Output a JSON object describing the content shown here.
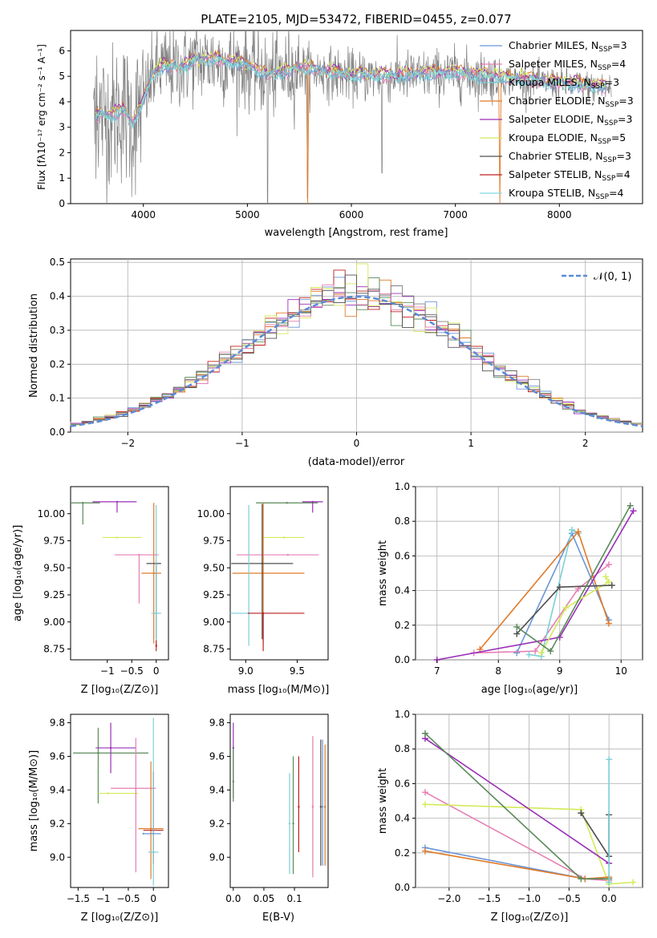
{
  "colors": {
    "chabrier_miles": "#6a95d6",
    "salpeter_miles": "#e67fb4",
    "kroupa_miles": "#7ccfd6",
    "chabrier_elodie": "#e07a28",
    "salpeter_elodie": "#9a2fb8",
    "kroupa_elodie": "#d4ea5a",
    "chabrier_stelib": "#505050",
    "salpeter_stelib": "#c02020",
    "kroupa_stelib": "#80d8e0",
    "green": "#5a8a5a",
    "data_gray": "#808080",
    "normal": "#5b8bd6"
  },
  "chart_data": [
    {
      "type": "line",
      "id": "spectrum",
      "title": "PLATE=2105, MJD=53472, FIBERID=0455, z=0.077",
      "xlabel": "wavelength [Angstrom, rest frame]",
      "ylabel": "Flux [fλ10⁻¹⁷ erg cm⁻² s⁻¹ A⁻¹]",
      "xlim": [
        3300,
        8800
      ],
      "ylim": [
        0,
        6.8
      ],
      "xticks": [
        4000,
        5000,
        6000,
        7000,
        8000
      ],
      "yticks": [
        0,
        1,
        2,
        3,
        4,
        5,
        6
      ],
      "legend_position": "top-right",
      "legend": [
        {
          "label": "Chabrier MILES, N",
          "sub": "SSP",
          "count": "=3",
          "color_key": "chabrier_miles"
        },
        {
          "label": "Salpeter MILES, N",
          "sub": "SSP",
          "count": "=4",
          "color_key": "salpeter_miles"
        },
        {
          "label": "Kroupa MILES, N",
          "sub": "SSP",
          "count": "=3",
          "color_key": "kroupa_miles"
        },
        {
          "label": "Chabrier ELODIE, N",
          "sub": "SSP",
          "count": "=3",
          "color_key": "chabrier_elodie"
        },
        {
          "label": "Salpeter ELODIE, N",
          "sub": "SSP",
          "count": "=3",
          "color_key": "salpeter_elodie"
        },
        {
          "label": "Kroupa ELODIE, N",
          "sub": "SSP",
          "count": "=5",
          "color_key": "kroupa_elodie"
        },
        {
          "label": "Chabrier STELIB, N",
          "sub": "SSP",
          "count": "=3",
          "color_key": "chabrier_stelib"
        },
        {
          "label": "Salpeter STELIB, N",
          "sub": "SSP",
          "count": "=4",
          "color_key": "salpeter_stelib"
        },
        {
          "label": "Kroupa STELIB, N",
          "sub": "SSP",
          "count": "=4",
          "color_key": "kroupa_stelib"
        }
      ],
      "model_continuum": {
        "x": [
          3500,
          3600,
          3700,
          3800,
          3900,
          4000,
          4100,
          4200,
          4300,
          4400,
          4500,
          4700,
          5000,
          5200,
          5500,
          6000,
          6500,
          7000,
          7500,
          8000,
          8500
        ],
        "y": [
          3.3,
          3.5,
          3.4,
          3.7,
          3.1,
          4.0,
          5.1,
          5.4,
          5.3,
          5.4,
          5.6,
          5.6,
          5.4,
          5.0,
          5.3,
          5.0,
          5.0,
          5.1,
          4.9,
          4.7,
          4.5
        ]
      }
    },
    {
      "type": "step",
      "id": "residuals",
      "xlabel": "(data-model)/error",
      "ylabel": "Normed distribution",
      "xlim": [
        -2.5,
        2.5
      ],
      "ylim": [
        0,
        0.51
      ],
      "xticks": [
        -2,
        -1,
        0,
        1,
        2
      ],
      "yticks": [
        0.0,
        0.1,
        0.2,
        0.3,
        0.4,
        0.5
      ],
      "grid": true,
      "legend_position": "top-right",
      "legend_label": "𝒩(0, 1)",
      "bin_width": 0.1
    },
    {
      "type": "scatter",
      "id": "age_vs_Z",
      "xlabel": "Z [log₁₀(Z/Z⊙)]",
      "ylabel": "age  [log₁₀(age/yr)]",
      "xlim": [
        -1.75,
        0.25
      ],
      "ylim": [
        8.65,
        10.25
      ],
      "xticks": [
        -1,
        -0.5,
        0
      ],
      "yticks": [
        8.75,
        9.0,
        9.25,
        9.5,
        9.75,
        10.0
      ],
      "points": [
        {
          "x": -1.5,
          "xerr": [
            0.5,
            0.35
          ],
          "y": 10.1,
          "yerr": [
            0.2,
            0.0
          ],
          "color_key": "green"
        },
        {
          "x": -0.8,
          "xerr": [
            0.5,
            0.4
          ],
          "y": 10.11,
          "yerr": [
            0.1,
            0.0
          ],
          "color_key": "salpeter_elodie"
        },
        {
          "x": -0.8,
          "xerr": [
            0.3,
            0.5
          ],
          "y": 9.78,
          "yerr": [
            0.0,
            0.0
          ],
          "color_key": "kroupa_elodie"
        },
        {
          "x": -0.35,
          "xerr": [
            0.5,
            0.4
          ],
          "y": 9.62,
          "yerr": [
            0.45,
            0.0
          ],
          "color_key": "salpeter_miles"
        },
        {
          "x": -0.05,
          "xerr": [
            0.25,
            0.15
          ],
          "y": 9.45,
          "yerr": [
            0.65,
            0.65
          ],
          "color_key": "chabrier_elodie"
        },
        {
          "x": 0.0,
          "xerr": [
            0.2,
            0.1
          ],
          "y": 9.54,
          "yerr": [
            0.7,
            0.0
          ],
          "color_key": "chabrier_stelib"
        },
        {
          "x": 0.0,
          "xerr": [
            0.1,
            0.1
          ],
          "y": 9.08,
          "yerr": [
            0.3,
            1.0
          ],
          "color_key": "kroupa_miles"
        },
        {
          "x": 0.0,
          "xerr": [
            0.0,
            0.0
          ],
          "y": 8.78,
          "yerr": [
            0.05,
            0.05
          ],
          "color_key": "salpeter_stelib"
        }
      ]
    },
    {
      "type": "scatter",
      "id": "age_vs_mass",
      "xlabel": "mass [log₁₀(M/M⊙)]",
      "ylabel": "",
      "xlim": [
        8.85,
        9.8
      ],
      "ylim": [
        8.65,
        10.25
      ],
      "xticks": [
        9.0,
        9.5
      ],
      "yticks": [
        8.75,
        9.0,
        9.25,
        9.5,
        9.75,
        10.0
      ],
      "points": [
        {
          "x": 9.4,
          "xerr": [
            0.3,
            0.3
          ],
          "y": 10.1,
          "yerr": [
            0.0,
            0.0
          ],
          "color_key": "green"
        },
        {
          "x": 9.65,
          "xerr": [
            0.1,
            0.1
          ],
          "y": 10.11,
          "yerr": [
            0.1,
            0.0
          ],
          "color_key": "salpeter_elodie"
        },
        {
          "x": 9.37,
          "xerr": [
            0.2,
            0.2
          ],
          "y": 9.78,
          "yerr": [
            0.0,
            0.0
          ],
          "color_key": "kroupa_elodie"
        },
        {
          "x": 9.41,
          "xerr": [
            0.5,
            0.3
          ],
          "y": 9.62,
          "yerr": [
            0.0,
            0.0
          ],
          "color_key": "salpeter_miles"
        },
        {
          "x": 9.17,
          "xerr": [
            0.3,
            0.4
          ],
          "y": 9.45,
          "yerr": [
            0.65,
            0.65
          ],
          "color_key": "chabrier_elodie"
        },
        {
          "x": 9.16,
          "xerr": [
            0.3,
            0.3
          ],
          "y": 9.54,
          "yerr": [
            0.7,
            0.55
          ],
          "color_key": "chabrier_stelib"
        },
        {
          "x": 9.03,
          "xerr": [
            0.2,
            0.3
          ],
          "y": 9.08,
          "yerr": [
            0.3,
            1.0
          ],
          "color_key": "kroupa_miles"
        },
        {
          "x": 9.17,
          "xerr": [
            0.15,
            0.4
          ],
          "y": 9.08,
          "yerr": [
            0.35,
            0.0
          ],
          "color_key": "salpeter_stelib"
        }
      ]
    },
    {
      "type": "line",
      "id": "massweight_vs_age",
      "xlabel": "age  [log₁₀(age/yr)]",
      "ylabel": "mass weight",
      "xlim": [
        6.65,
        10.35
      ],
      "ylim": [
        0,
        1.0
      ],
      "xticks": [
        7,
        8,
        9,
        10
      ],
      "yticks": [
        0.0,
        0.2,
        0.4,
        0.6,
        0.8,
        1.0
      ],
      "grid": true,
      "series": [
        {
          "color_key": "chabrier_miles",
          "x": [
            8.3,
            9.2,
            9.8
          ],
          "y": [
            0.04,
            0.73,
            0.23
          ]
        },
        {
          "color_key": "salpeter_miles",
          "x": [
            7.6,
            8.6,
            9.3,
            9.8
          ],
          "y": [
            0.04,
            0.05,
            0.41,
            0.55
          ]
        },
        {
          "color_key": "kroupa_miles",
          "x": [
            8.5,
            8.7,
            9.2,
            9.3
          ],
          "y": [
            0.03,
            0.02,
            0.75,
            0.73
          ]
        },
        {
          "color_key": "chabrier_elodie",
          "x": [
            7.7,
            9.3,
            9.8
          ],
          "y": [
            0.06,
            0.74,
            0.21
          ]
        },
        {
          "color_key": "salpeter_elodie",
          "x": [
            7.0,
            9.0,
            10.2
          ],
          "y": [
            0.0,
            0.13,
            0.86
          ]
        },
        {
          "color_key": "kroupa_elodie",
          "x": [
            8.7,
            9.1,
            9.8,
            9.75
          ],
          "y": [
            0.04,
            0.3,
            0.45,
            0.48
          ]
        },
        {
          "color_key": "chabrier_stelib",
          "x": [
            8.3,
            9.0,
            9.85
          ],
          "y": [
            0.15,
            0.42,
            0.43
          ]
        },
        {
          "color_key": "green",
          "x": [
            8.3,
            8.85,
            10.15
          ],
          "y": [
            0.19,
            0.05,
            0.89
          ]
        }
      ]
    },
    {
      "type": "scatter",
      "id": "mass_vs_Z",
      "xlabel": "Z [log₁₀(Z/Z⊙)]",
      "ylabel": "mass [log₁₀(M/M⊙)]",
      "xlim": [
        -1.65,
        0.3
      ],
      "ylim": [
        8.82,
        9.85
      ],
      "xticks": [
        -1.5,
        -1.0,
        -0.5,
        0.0
      ],
      "yticks": [
        9.0,
        9.2,
        9.4,
        9.6,
        9.8
      ],
      "points": [
        {
          "x": -1.1,
          "xerr": [
            0.5,
            1.0
          ],
          "y": 9.62,
          "yerr": [
            0.3,
            0.15
          ],
          "color_key": "green"
        },
        {
          "x": -0.85,
          "xerr": [
            0.3,
            0.5
          ],
          "y": 9.65,
          "yerr": [
            0.15,
            0.15
          ],
          "color_key": "salpeter_elodie"
        },
        {
          "x": -0.9,
          "xerr": [
            0.2,
            0.6
          ],
          "y": 9.38,
          "yerr": [
            0.0,
            0.0
          ],
          "color_key": "kroupa_elodie"
        },
        {
          "x": -0.35,
          "xerr": [
            0.5,
            0.4
          ],
          "y": 9.41,
          "yerr": [
            0.5,
            0.3
          ],
          "color_key": "salpeter_miles"
        },
        {
          "x": -0.05,
          "xerr": [
            0.25,
            0.25
          ],
          "y": 9.17,
          "yerr": [
            0.3,
            0.4
          ],
          "color_key": "chabrier_elodie"
        },
        {
          "x": 0.0,
          "xerr": [
            0.2,
            0.2
          ],
          "y": 9.16,
          "yerr": [
            0.2,
            0.35
          ],
          "color_key": "salpeter_stelib"
        },
        {
          "x": 0.0,
          "xerr": [
            0.1,
            0.1
          ],
          "y": 9.03,
          "yerr": [
            0.2,
            0.8
          ],
          "color_key": "kroupa_miles"
        },
        {
          "x": -0.2,
          "xerr": [
            0.0,
            0.35
          ],
          "y": 9.14,
          "yerr": [
            0.0,
            0.0
          ],
          "color_key": "chabrier_miles"
        }
      ]
    },
    {
      "type": "scatter",
      "id": "mass_vs_EBV",
      "xlabel": "E(B-V)",
      "ylabel": "",
      "xlim": [
        -0.005,
        0.155
      ],
      "ylim": [
        8.82,
        9.85
      ],
      "xticks": [
        0.0,
        0.05,
        0.1
      ],
      "yticks": [
        9.0,
        9.2,
        9.4,
        9.6,
        9.8
      ],
      "points": [
        {
          "x": 0.0,
          "y": 9.65,
          "yerr": [
            0.3,
            0.15
          ],
          "color_key": "salpeter_elodie"
        },
        {
          "x": 0.0,
          "y": 9.45,
          "yerr": [
            0.12,
            0.2
          ],
          "color_key": "green"
        },
        {
          "x": 0.092,
          "y": 9.2,
          "yerr": [
            0.3,
            0.3
          ],
          "color_key": "kroupa_miles"
        },
        {
          "x": 0.098,
          "y": 9.2,
          "yerr": [
            0.3,
            0.4
          ],
          "color_key": "green"
        },
        {
          "x": 0.107,
          "y": 9.3,
          "yerr": [
            0.27,
            0.3
          ],
          "color_key": "salpeter_stelib"
        },
        {
          "x": 0.13,
          "y": 9.3,
          "yerr": [
            0.4,
            0.42
          ],
          "color_key": "kroupa_elodie"
        },
        {
          "x": 0.13,
          "y": 9.3,
          "yerr": [
            0.42,
            0.42
          ],
          "color_key": "salpeter_miles"
        },
        {
          "x": 0.143,
          "y": 9.3,
          "yerr": [
            0.35,
            0.4
          ],
          "color_key": "chabrier_stelib"
        },
        {
          "x": 0.146,
          "y": 9.3,
          "yerr": [
            0.35,
            0.4
          ],
          "color_key": "chabrier_miles"
        },
        {
          "x": 0.15,
          "y": 9.3,
          "yerr": [
            0.35,
            0.37
          ],
          "color_key": "chabrier_elodie"
        }
      ]
    },
    {
      "type": "line",
      "id": "massweight_vs_Z",
      "xlabel": "Z [log₁₀(Z/Z⊙)]",
      "ylabel": "mass weight",
      "xlim": [
        -2.42,
        0.42
      ],
      "ylim": [
        0,
        1.0
      ],
      "xticks": [
        -2.0,
        -1.5,
        -1.0,
        -0.5,
        0.0
      ],
      "grid": true,
      "yticks": [
        0.0,
        0.2,
        0.4,
        0.6,
        0.8,
        1.0
      ],
      "series": [
        {
          "color_key": "chabrier_miles",
          "x": [
            -2.3,
            -0.3,
            0.0
          ],
          "y": [
            0.23,
            0.05,
            0.05
          ]
        },
        {
          "color_key": "salpeter_miles",
          "x": [
            -2.3,
            -0.3,
            0.0
          ],
          "y": [
            0.55,
            0.05,
            0.04
          ]
        },
        {
          "color_key": "kroupa_elodie",
          "x": [
            -2.3,
            -0.35,
            0.0,
            0.3
          ],
          "y": [
            0.48,
            0.45,
            0.02,
            0.03
          ]
        },
        {
          "color_key": "chabrier_elodie",
          "x": [
            -2.3,
            -0.3,
            0.0
          ],
          "y": [
            0.21,
            0.05,
            0.06
          ]
        },
        {
          "color_key": "salpeter_elodie",
          "x": [
            -2.3,
            0.0
          ],
          "y": [
            0.86,
            0.14
          ]
        },
        {
          "color_key": "chabrier_stelib",
          "x": [
            -0.35,
            0.0,
            0.0
          ],
          "y": [
            0.43,
            0.18,
            0.42
          ]
        },
        {
          "color_key": "green",
          "x": [
            -2.3,
            -0.35,
            0.0
          ],
          "y": [
            0.89,
            0.05,
            0.05
          ]
        },
        {
          "color_key": "kroupa_miles",
          "x": [
            0.0,
            0.0
          ],
          "y": [
            0.03,
            0.74
          ]
        }
      ]
    }
  ]
}
